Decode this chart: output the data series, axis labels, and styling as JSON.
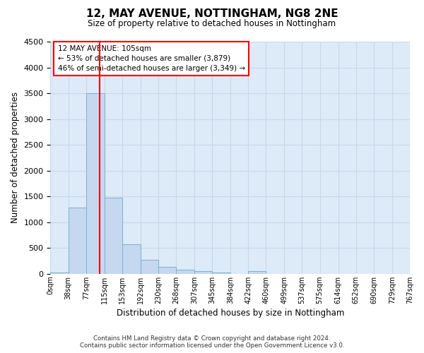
{
  "title": "12, MAY AVENUE, NOTTINGHAM, NG8 2NE",
  "subtitle": "Size of property relative to detached houses in Nottingham",
  "xlabel": "Distribution of detached houses by size in Nottingham",
  "ylabel": "Number of detached properties",
  "bar_color": "#c5d8f0",
  "bar_edge_color": "#7aafd4",
  "grid_color": "#c8d8e8",
  "background_color": "#ddeaf8",
  "vline_x": 105,
  "vline_color": "red",
  "bin_edges": [
    0,
    38,
    77,
    115,
    153,
    192,
    230,
    268,
    307,
    345,
    384,
    422,
    460,
    499,
    537,
    575,
    614,
    652,
    690,
    729,
    767
  ],
  "bar_heights": [
    28,
    1280,
    3500,
    1480,
    570,
    270,
    130,
    75,
    45,
    28,
    0,
    50,
    0,
    0,
    0,
    0,
    0,
    0,
    0,
    0
  ],
  "ylim": [
    0,
    4500
  ],
  "yticks": [
    0,
    500,
    1000,
    1500,
    2000,
    2500,
    3000,
    3500,
    4000,
    4500
  ],
  "annotation_line1": "12 MAY AVENUE: 105sqm",
  "annotation_line2": "← 53% of detached houses are smaller (3,879)",
  "annotation_line3": "46% of semi-detached houses are larger (3,349) →",
  "annotation_box_color": "white",
  "annotation_box_edge": "red",
  "footer_line1": "Contains HM Land Registry data © Crown copyright and database right 2024.",
  "footer_line2": "Contains public sector information licensed under the Open Government Licence v3.0.",
  "tick_labels": [
    "0sqm",
    "38sqm",
    "77sqm",
    "115sqm",
    "153sqm",
    "192sqm",
    "230sqm",
    "268sqm",
    "307sqm",
    "345sqm",
    "384sqm",
    "422sqm",
    "460sqm",
    "499sqm",
    "537sqm",
    "575sqm",
    "614sqm",
    "652sqm",
    "690sqm",
    "729sqm",
    "767sqm"
  ]
}
